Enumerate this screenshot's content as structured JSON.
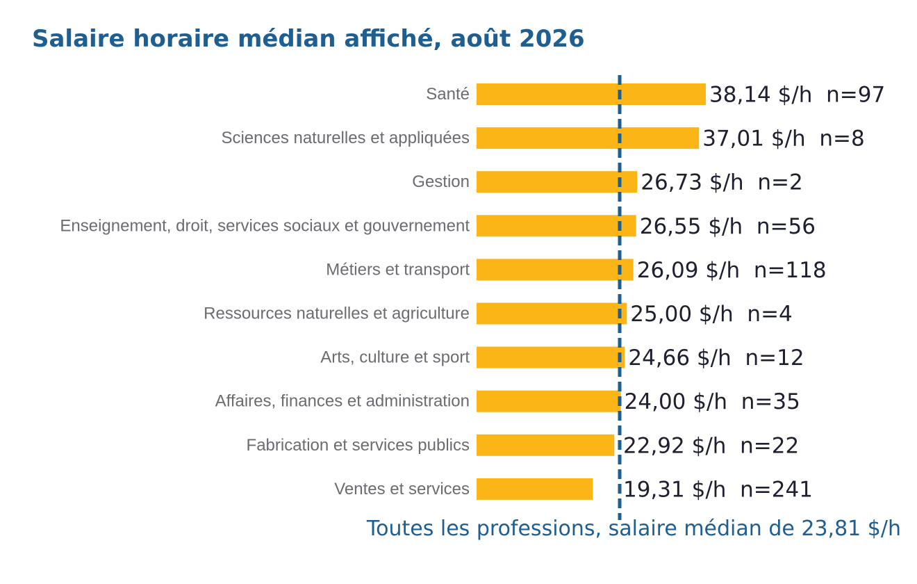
{
  "colors": {
    "bar": "#fbb517",
    "reference_line": "#1f5e91",
    "title": "#1f5e91"
  },
  "chart_data": {
    "type": "bar",
    "orientation": "horizontal",
    "title": "Salaire horaire médian affiché, août 2026",
    "categories": [
      "Santé",
      "Sciences naturelles et appliquées",
      "Gestion",
      "Enseignement, droit, services sociaux et gouvernement",
      "Métiers et transport",
      "Ressources naturelles et agriculture",
      "Arts, culture et sport",
      "Affaires, finances et administration",
      "Fabrication et services publics",
      "Ventes et services"
    ],
    "values": [
      38.14,
      37.01,
      26.73,
      26.55,
      26.09,
      25.0,
      24.66,
      24.0,
      22.92,
      19.31
    ],
    "data_labels": [
      "38,14 $/h  n=97",
      "37,01 $/h  n=8",
      "26,73 $/h  n=2",
      "26,55 $/h  n=56",
      "26,09 $/h  n=118",
      "25,00 $/h  n=4",
      "24,66 $/h  n=12",
      "24,00 $/h  n=35",
      "22,92 $/h  n=22",
      "19,31 $/h  n=241"
    ],
    "reference_line": {
      "value": 23.81,
      "label": "Toutes les professions, salaire médian de 23,81 $/h"
    },
    "xlim": [
      0,
      38.14
    ],
    "grid": false,
    "legend": "none"
  }
}
